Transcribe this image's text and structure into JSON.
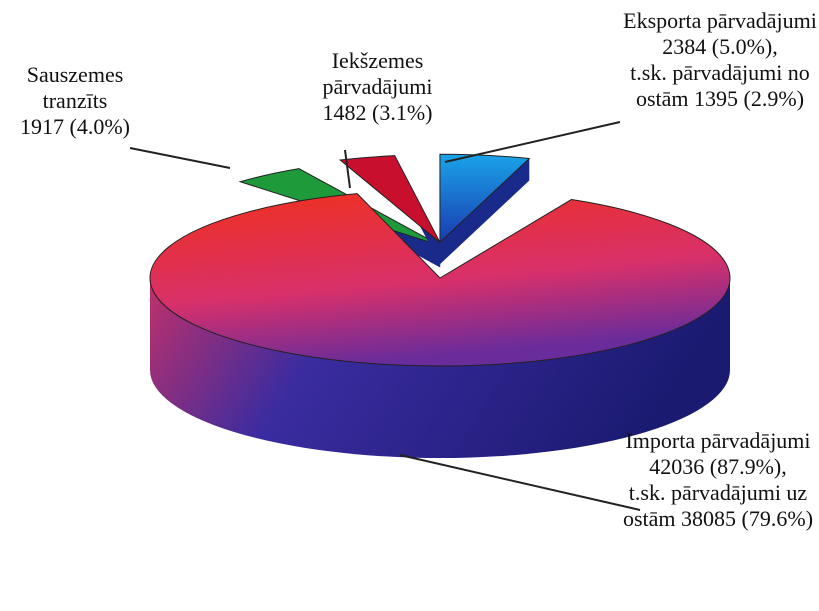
{
  "chart_data": {
    "type": "pie",
    "categories": [
      "Sauszemes tranzīts",
      "Iekšzemes pārvadājumi",
      "Eksporta pārvadājumi",
      "Importa pārvadājumi"
    ],
    "values": [
      1917,
      1482,
      2384,
      42036
    ],
    "value_labels": [
      "1917 (4.0%)",
      "1482 (3.1%)",
      "2384 (5.0%),",
      "42036 (87.9%),"
    ],
    "colors": [
      "#1f9a3a",
      "#c8102e",
      "#1aa3e8",
      "#e8302a"
    ],
    "annotations": [
      {
        "category": "Eksporta pārvadājumi",
        "text": "t.sk. pārvadājumi no ostām 1395 (2.9%)"
      },
      {
        "category": "Importa pārvadājumi",
        "text": "t.sk. pārvadājumi uz ostām 38085 (79.6%)"
      }
    ]
  }
}
